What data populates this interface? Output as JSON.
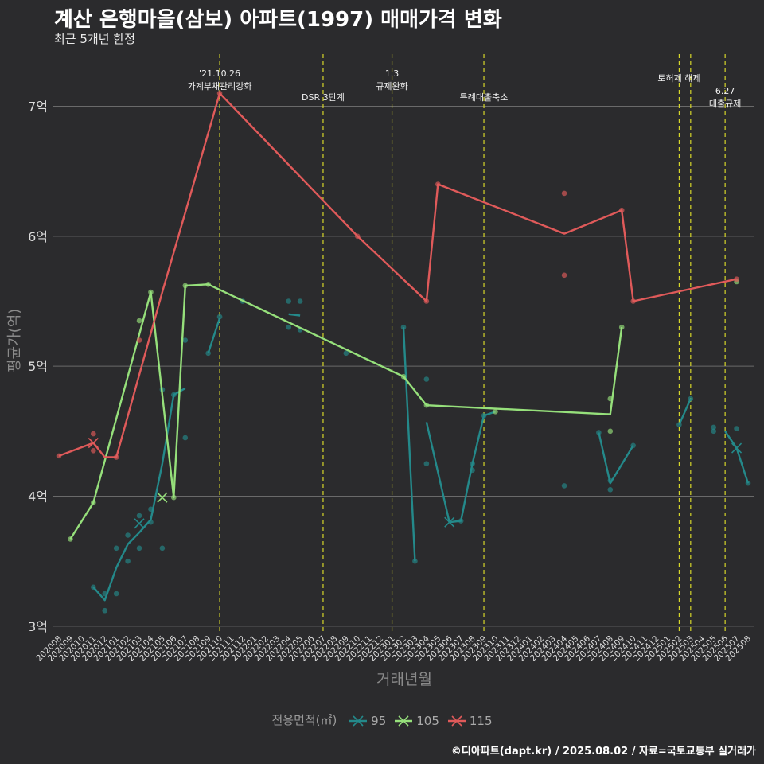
{
  "title": "계산 은행마을(삼보) 아파트(1997) 매매가격 변화",
  "subtitle": "최근 5개년 한정",
  "caption": "©디아파트(dapt.kr) / 2025.08.02 / 자료=국토교통부 실거래가",
  "chart_data": {
    "type": "line",
    "xlabel": "거래년월",
    "ylabel": "평균가(억)",
    "ylim": [
      2.95,
      7.45
    ],
    "yticks": [
      3,
      4,
      5,
      6,
      7
    ],
    "ytick_labels": [
      "3억",
      "4억",
      "5억",
      "6억",
      "7억"
    ],
    "x_start": "202008",
    "x_end": "202508",
    "legend_title": "전용면적(㎡)",
    "series": [
      {
        "name": "95",
        "color": "#24898a",
        "line": [
          [
            "202011",
            3.3
          ],
          [
            "202012",
            3.2
          ],
          [
            "202101",
            3.45
          ],
          [
            "202102",
            3.63
          ],
          [
            "202103",
            3.72
          ],
          [
            "202104",
            3.82
          ],
          [
            "202105",
            4.25
          ],
          [
            "202106",
            4.78
          ],
          [
            "202107",
            4.83
          ],
          null,
          [
            "202109",
            5.1
          ],
          [
            "202110",
            5.37
          ],
          null,
          [
            "202204",
            5.4
          ],
          [
            "202205",
            5.39
          ],
          null,
          [
            "202302",
            5.3
          ],
          [
            "202303",
            3.5
          ],
          null,
          [
            "202304",
            4.57
          ],
          [
            "202306",
            3.8
          ],
          [
            "202307",
            3.81
          ],
          [
            "202308",
            4.25
          ],
          [
            "202309",
            4.62
          ],
          [
            "202310",
            4.65
          ],
          null,
          [
            "202407",
            4.49
          ],
          [
            "202408",
            4.1
          ],
          [
            "202410",
            4.39
          ],
          null,
          [
            "202502",
            4.55
          ],
          [
            "202503",
            4.75
          ],
          null,
          [
            "202506",
            4.5
          ],
          [
            "202507",
            4.37
          ],
          [
            "202508",
            4.1
          ]
        ],
        "points": [
          [
            "202011",
            3.3
          ],
          [
            "202012",
            3.25
          ],
          [
            "202012",
            3.12
          ],
          [
            "202101",
            3.25
          ],
          [
            "202101",
            3.6
          ],
          [
            "202102",
            3.5
          ],
          [
            "202102",
            3.7
          ],
          [
            "202103",
            3.6
          ],
          [
            "202103",
            3.85
          ],
          [
            "202104",
            3.9
          ],
          [
            "202104",
            3.8
          ],
          [
            "202105",
            3.6
          ],
          [
            "202105",
            4.82
          ],
          [
            "202106",
            4.78
          ],
          [
            "202107",
            4.45
          ],
          [
            "202107",
            5.2
          ],
          [
            "202109",
            5.1
          ],
          [
            "202110",
            5.38
          ],
          [
            "202112",
            5.5
          ],
          [
            "202204",
            5.5
          ],
          [
            "202204",
            5.3
          ],
          [
            "202205",
            5.5
          ],
          [
            "202205",
            5.28
          ],
          [
            "202209",
            5.1
          ],
          [
            "202302",
            5.3
          ],
          [
            "202303",
            3.5
          ],
          [
            "202304",
            4.9
          ],
          [
            "202304",
            4.25
          ],
          [
            "202307",
            3.81
          ],
          [
            "202308",
            4.2
          ],
          [
            "202308",
            4.25
          ],
          [
            "202309",
            4.62
          ],
          [
            "202404",
            4.08
          ],
          [
            "202407",
            4.49
          ],
          [
            "202408",
            4.05
          ],
          [
            "202408",
            4.12
          ],
          [
            "202410",
            4.39
          ],
          [
            "202502",
            4.55
          ],
          [
            "202503",
            4.75
          ],
          [
            "202505",
            4.53
          ],
          [
            "202505",
            4.5
          ],
          [
            "202507",
            4.52
          ],
          [
            "202508",
            4.1
          ]
        ],
        "crosses": [
          [
            "202103",
            3.79
          ],
          [
            "202306",
            3.8
          ],
          [
            "202507",
            4.37
          ]
        ]
      },
      {
        "name": "105",
        "color": "#96e07b",
        "line": [
          [
            "202009",
            3.67
          ],
          [
            "202011",
            3.95
          ],
          [
            "202104",
            5.57
          ],
          [
            "202106",
            3.99
          ],
          [
            "202107",
            5.62
          ],
          [
            "202109",
            5.63
          ],
          [
            "202302",
            4.92
          ],
          [
            "202304",
            4.7
          ],
          [
            "202408",
            4.63
          ],
          [
            "202409",
            5.3
          ]
        ],
        "points": [
          [
            "202009",
            3.67
          ],
          [
            "202011",
            3.95
          ],
          [
            "202103",
            5.35
          ],
          [
            "202104",
            5.57
          ],
          [
            "202106",
            3.99
          ],
          [
            "202107",
            5.62
          ],
          [
            "202109",
            5.63
          ],
          [
            "202302",
            4.92
          ],
          [
            "202304",
            4.7
          ],
          [
            "202310",
            4.65
          ],
          [
            "202408",
            4.5
          ],
          [
            "202408",
            4.75
          ],
          [
            "202409",
            5.3
          ],
          [
            "202507",
            5.65
          ]
        ],
        "crosses": [
          [
            "202105",
            3.99
          ]
        ]
      },
      {
        "name": "115",
        "color": "#e05a5a",
        "line": [
          [
            "202008",
            4.31
          ],
          [
            "202011",
            4.41
          ],
          [
            "202012",
            4.3
          ],
          [
            "202101",
            4.3
          ],
          [
            "202105",
            5.57
          ],
          [
            "202110",
            7.1
          ],
          [
            "202210",
            6.0
          ],
          [
            "202304",
            5.5
          ],
          [
            "202305",
            6.4
          ],
          [
            "202404",
            6.02
          ],
          [
            "202409",
            6.2
          ],
          [
            "202410",
            5.5
          ],
          [
            "202507",
            5.67
          ]
        ],
        "points": [
          [
            "202008",
            4.31
          ],
          [
            "202011",
            4.48
          ],
          [
            "202011",
            4.35
          ],
          [
            "202101",
            4.3
          ],
          [
            "202103",
            5.2
          ],
          [
            "202110",
            7.1
          ],
          [
            "202210",
            6.0
          ],
          [
            "202304",
            5.5
          ],
          [
            "202305",
            6.4
          ],
          [
            "202404",
            6.33
          ],
          [
            "202404",
            5.7
          ],
          [
            "202409",
            6.2
          ],
          [
            "202410",
            5.5
          ],
          [
            "202507",
            5.67
          ]
        ],
        "crosses": [
          [
            "202011",
            4.41
          ]
        ]
      }
    ],
    "annotations": [
      {
        "x": "202110",
        "lines": [
          "'21.10.26",
          "가계부채관리강화"
        ]
      },
      {
        "x": "202207",
        "lines": [
          "DSR 3단계"
        ]
      },
      {
        "x": "202301",
        "lines": [
          "1.3",
          "규제완화"
        ]
      },
      {
        "x": "202309",
        "lines": [
          "특례대출축소"
        ]
      },
      {
        "x": "202502",
        "lines": [
          "토허제 해제"
        ]
      },
      {
        "x": "202503",
        "lines": []
      },
      {
        "x": "202506",
        "lines": [
          "6.27",
          "대출규제"
        ]
      }
    ]
  }
}
